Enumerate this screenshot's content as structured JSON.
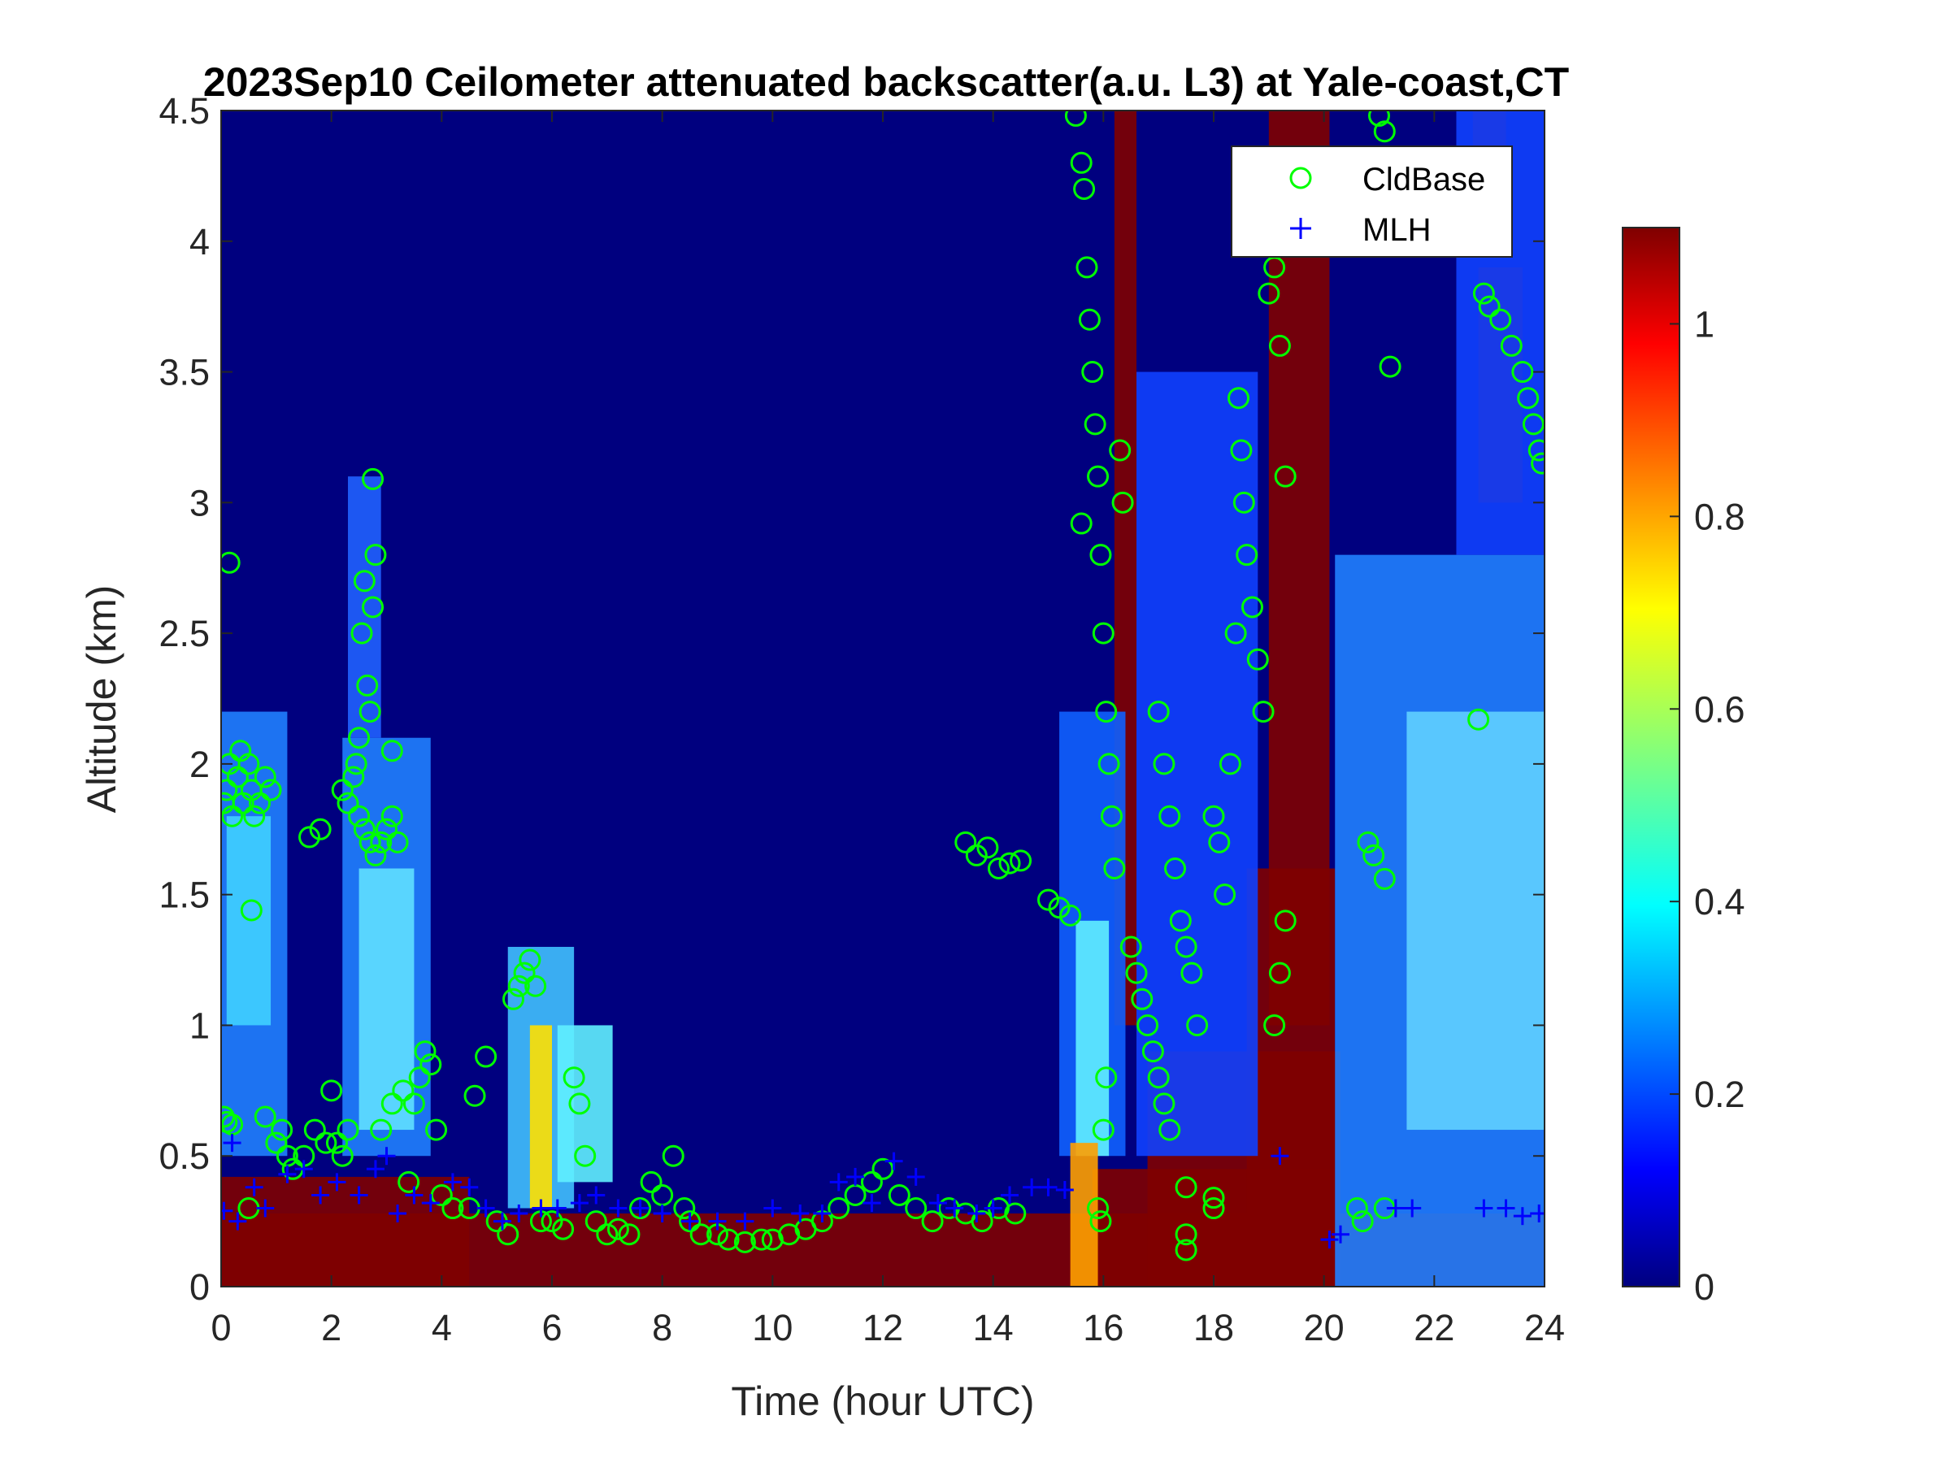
{
  "chart_data": {
    "type": "heatmap",
    "title": "2023Sep10 Ceilometer attenuated backscatter(a.u. L3) at Yale-coast,CT",
    "xlabel": "Time (hour UTC)",
    "ylabel": "Altitude (km)",
    "xlim": [
      0,
      24
    ],
    "ylim": [
      0,
      4.5
    ],
    "x_ticks": [
      "0",
      "2",
      "4",
      "6",
      "8",
      "10",
      "12",
      "14",
      "16",
      "18",
      "20",
      "22",
      "24"
    ],
    "y_ticks": [
      "0",
      "0.5",
      "1",
      "1.5",
      "2",
      "2.5",
      "3",
      "3.5",
      "4",
      "4.5"
    ],
    "colorbar": {
      "colormap": "jet",
      "range": [
        0,
        1.1
      ],
      "ticks": [
        "0",
        "0.2",
        "0.4",
        "0.6",
        "0.8",
        "1"
      ]
    },
    "legend": {
      "position": "top-right",
      "entries": [
        {
          "label": "CldBase",
          "marker": "circle",
          "color": "#00ff00"
        },
        {
          "label": "MLH",
          "marker": "plus",
          "color": "#0000ff"
        }
      ]
    },
    "series": [
      {
        "name": "CldBase",
        "points": [
          [
            0.05,
            0.65
          ],
          [
            0.1,
            0.63
          ],
          [
            0.2,
            0.62
          ],
          [
            0.5,
            0.3
          ],
          [
            0.05,
            1.85
          ],
          [
            0.1,
            1.9
          ],
          [
            0.15,
            2.0
          ],
          [
            0.2,
            1.8
          ],
          [
            0.3,
            1.95
          ],
          [
            0.35,
            2.05
          ],
          [
            0.4,
            1.85
          ],
          [
            0.5,
            2.0
          ],
          [
            0.55,
            1.9
          ],
          [
            0.6,
            1.8
          ],
          [
            0.7,
            1.85
          ],
          [
            0.8,
            1.95
          ],
          [
            0.9,
            1.9
          ],
          [
            0.15,
            2.77
          ],
          [
            0.55,
            1.44
          ],
          [
            0.8,
            0.65
          ],
          [
            1.0,
            0.55
          ],
          [
            1.1,
            0.6
          ],
          [
            1.2,
            0.5
          ],
          [
            1.3,
            0.45
          ],
          [
            1.5,
            0.5
          ],
          [
            1.6,
            1.72
          ],
          [
            1.8,
            1.75
          ],
          [
            1.7,
            0.6
          ],
          [
            1.9,
            0.55
          ],
          [
            2.0,
            0.75
          ],
          [
            2.1,
            0.55
          ],
          [
            2.2,
            0.5
          ],
          [
            2.3,
            0.6
          ],
          [
            2.2,
            1.9
          ],
          [
            2.3,
            1.85
          ],
          [
            2.4,
            1.95
          ],
          [
            2.5,
            1.8
          ],
          [
            2.6,
            1.75
          ],
          [
            2.7,
            1.7
          ],
          [
            2.8,
            1.65
          ],
          [
            2.9,
            1.7
          ],
          [
            3.0,
            1.75
          ],
          [
            3.1,
            1.8
          ],
          [
            3.2,
            1.7
          ],
          [
            2.45,
            2.0
          ],
          [
            2.5,
            2.1
          ],
          [
            2.55,
            2.5
          ],
          [
            2.6,
            2.7
          ],
          [
            2.65,
            2.3
          ],
          [
            2.7,
            2.2
          ],
          [
            2.75,
            2.6
          ],
          [
            2.8,
            2.8
          ],
          [
            2.75,
            3.09
          ],
          [
            3.1,
            2.05
          ],
          [
            2.9,
            0.6
          ],
          [
            3.1,
            0.7
          ],
          [
            3.3,
            0.75
          ],
          [
            3.5,
            0.7
          ],
          [
            3.6,
            0.8
          ],
          [
            3.7,
            0.9
          ],
          [
            3.8,
            0.85
          ],
          [
            3.9,
            0.6
          ],
          [
            3.4,
            0.4
          ],
          [
            4.0,
            0.35
          ],
          [
            4.2,
            0.3
          ],
          [
            4.5,
            0.3
          ],
          [
            4.6,
            0.73
          ],
          [
            4.8,
            0.88
          ],
          [
            5.0,
            0.25
          ],
          [
            5.2,
            0.2
          ],
          [
            5.3,
            1.1
          ],
          [
            5.4,
            1.15
          ],
          [
            5.5,
            1.2
          ],
          [
            5.6,
            1.25
          ],
          [
            5.7,
            1.15
          ],
          [
            5.8,
            0.25
          ],
          [
            6.0,
            0.25
          ],
          [
            6.2,
            0.22
          ],
          [
            6.4,
            0.8
          ],
          [
            6.5,
            0.7
          ],
          [
            6.6,
            0.5
          ],
          [
            6.8,
            0.25
          ],
          [
            7.0,
            0.2
          ],
          [
            7.2,
            0.22
          ],
          [
            7.4,
            0.2
          ],
          [
            7.6,
            0.3
          ],
          [
            7.8,
            0.4
          ],
          [
            8.0,
            0.35
          ],
          [
            8.2,
            0.5
          ],
          [
            8.4,
            0.3
          ],
          [
            8.5,
            0.25
          ],
          [
            8.7,
            0.2
          ],
          [
            9.0,
            0.2
          ],
          [
            9.2,
            0.18
          ],
          [
            9.5,
            0.17
          ],
          [
            9.8,
            0.18
          ],
          [
            10.0,
            0.18
          ],
          [
            10.3,
            0.2
          ],
          [
            10.6,
            0.22
          ],
          [
            10.9,
            0.25
          ],
          [
            11.2,
            0.3
          ],
          [
            11.5,
            0.35
          ],
          [
            11.8,
            0.4
          ],
          [
            12.0,
            0.45
          ],
          [
            12.3,
            0.35
          ],
          [
            12.6,
            0.3
          ],
          [
            12.9,
            0.25
          ],
          [
            13.2,
            0.3
          ],
          [
            13.5,
            0.28
          ],
          [
            13.8,
            0.25
          ],
          [
            14.1,
            0.3
          ],
          [
            14.4,
            0.28
          ],
          [
            13.5,
            1.7
          ],
          [
            13.7,
            1.65
          ],
          [
            13.9,
            1.68
          ],
          [
            14.1,
            1.6
          ],
          [
            14.3,
            1.62
          ],
          [
            14.5,
            1.63
          ],
          [
            15.0,
            1.48
          ],
          [
            15.2,
            1.45
          ],
          [
            15.4,
            1.42
          ],
          [
            15.5,
            4.48
          ],
          [
            15.6,
            4.3
          ],
          [
            15.65,
            4.2
          ],
          [
            15.7,
            3.9
          ],
          [
            15.75,
            3.7
          ],
          [
            15.8,
            3.5
          ],
          [
            15.85,
            3.3
          ],
          [
            15.9,
            3.1
          ],
          [
            15.6,
            2.92
          ],
          [
            15.95,
            2.8
          ],
          [
            16.0,
            2.5
          ],
          [
            16.05,
            2.2
          ],
          [
            16.1,
            2.0
          ],
          [
            16.15,
            1.8
          ],
          [
            16.2,
            1.6
          ],
          [
            16.3,
            3.2
          ],
          [
            16.35,
            3.0
          ],
          [
            15.9,
            0.3
          ],
          [
            15.95,
            0.25
          ],
          [
            16.0,
            0.6
          ],
          [
            16.05,
            0.8
          ],
          [
            16.5,
            1.3
          ],
          [
            16.6,
            1.2
          ],
          [
            16.7,
            1.1
          ],
          [
            16.8,
            1.0
          ],
          [
            16.9,
            0.9
          ],
          [
            17.0,
            0.8
          ],
          [
            17.1,
            0.7
          ],
          [
            17.2,
            0.6
          ],
          [
            17.0,
            2.2
          ],
          [
            17.1,
            2.0
          ],
          [
            17.2,
            1.8
          ],
          [
            17.3,
            1.6
          ],
          [
            17.4,
            1.4
          ],
          [
            17.5,
            1.3
          ],
          [
            17.6,
            1.2
          ],
          [
            17.7,
            1.0
          ],
          [
            17.5,
            0.38
          ],
          [
            17.5,
            0.2
          ],
          [
            17.5,
            0.14
          ],
          [
            18.0,
            0.3
          ],
          [
            18.0,
            0.34
          ],
          [
            18.0,
            1.8
          ],
          [
            18.1,
            1.7
          ],
          [
            18.2,
            1.5
          ],
          [
            18.3,
            2.0
          ],
          [
            18.4,
            2.5
          ],
          [
            18.45,
            3.4
          ],
          [
            18.5,
            3.2
          ],
          [
            18.55,
            3.0
          ],
          [
            18.6,
            2.8
          ],
          [
            18.7,
            2.6
          ],
          [
            18.8,
            2.4
          ],
          [
            18.9,
            2.2
          ],
          [
            19.0,
            3.8
          ],
          [
            19.1,
            3.9
          ],
          [
            19.2,
            3.6
          ],
          [
            19.3,
            3.1
          ],
          [
            19.1,
            1.0
          ],
          [
            19.2,
            1.2
          ],
          [
            19.3,
            1.4
          ],
          [
            20.6,
            0.3
          ],
          [
            20.7,
            0.25
          ],
          [
            20.8,
            1.7
          ],
          [
            20.9,
            1.65
          ],
          [
            21.0,
            4.48
          ],
          [
            21.1,
            4.42
          ],
          [
            21.2,
            3.52
          ],
          [
            21.1,
            1.56
          ],
          [
            21.1,
            0.3
          ],
          [
            22.8,
            2.17
          ],
          [
            22.9,
            3.8
          ],
          [
            23.0,
            3.75
          ],
          [
            23.2,
            3.7
          ],
          [
            23.4,
            3.6
          ],
          [
            23.6,
            3.5
          ],
          [
            23.7,
            3.4
          ],
          [
            23.8,
            3.3
          ],
          [
            23.9,
            3.2
          ],
          [
            23.95,
            3.15
          ]
        ]
      },
      {
        "name": "MLH",
        "points": [
          [
            0.05,
            0.29
          ],
          [
            0.2,
            0.55
          ],
          [
            0.3,
            0.25
          ],
          [
            0.6,
            0.38
          ],
          [
            0.8,
            0.3
          ],
          [
            1.2,
            0.43
          ],
          [
            1.5,
            0.45
          ],
          [
            1.8,
            0.35
          ],
          [
            2.1,
            0.4
          ],
          [
            2.5,
            0.35
          ],
          [
            2.8,
            0.45
          ],
          [
            3.0,
            0.5
          ],
          [
            3.2,
            0.28
          ],
          [
            3.5,
            0.35
          ],
          [
            3.8,
            0.32
          ],
          [
            4.2,
            0.4
          ],
          [
            4.5,
            0.38
          ],
          [
            4.8,
            0.3
          ],
          [
            5.1,
            0.25
          ],
          [
            5.4,
            0.28
          ],
          [
            5.8,
            0.3
          ],
          [
            6.1,
            0.3
          ],
          [
            6.5,
            0.32
          ],
          [
            6.8,
            0.35
          ],
          [
            7.2,
            0.3
          ],
          [
            7.6,
            0.3
          ],
          [
            8.0,
            0.28
          ],
          [
            8.5,
            0.25
          ],
          [
            9.0,
            0.25
          ],
          [
            9.5,
            0.25
          ],
          [
            10.0,
            0.3
          ],
          [
            10.5,
            0.28
          ],
          [
            10.9,
            0.28
          ],
          [
            11.2,
            0.4
          ],
          [
            11.5,
            0.42
          ],
          [
            11.8,
            0.32
          ],
          [
            12.2,
            0.48
          ],
          [
            12.6,
            0.42
          ],
          [
            13.0,
            0.32
          ],
          [
            13.3,
            0.3
          ],
          [
            13.7,
            0.28
          ],
          [
            14.0,
            0.3
          ],
          [
            14.3,
            0.35
          ],
          [
            14.7,
            0.38
          ],
          [
            15.0,
            0.38
          ],
          [
            15.3,
            0.37
          ],
          [
            19.2,
            0.5
          ],
          [
            20.1,
            0.18
          ],
          [
            20.3,
            0.2
          ],
          [
            21.3,
            0.3
          ],
          [
            21.6,
            0.3
          ],
          [
            22.9,
            0.3
          ],
          [
            23.3,
            0.3
          ],
          [
            23.6,
            0.27
          ],
          [
            23.9,
            0.28
          ]
        ]
      }
    ]
  }
}
